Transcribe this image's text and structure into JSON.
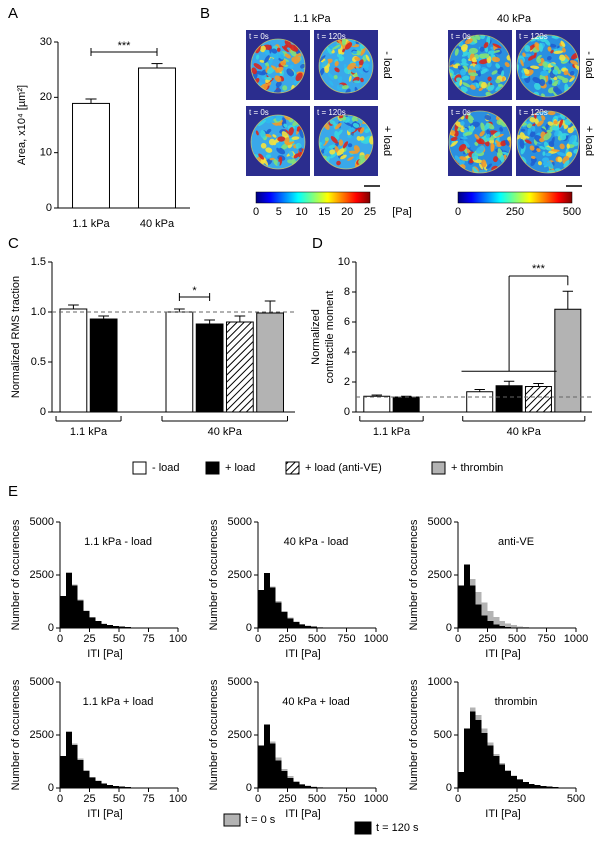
{
  "panel_labels": [
    "A",
    "B",
    "C",
    "D",
    "E"
  ],
  "panel_b": {
    "columns": [
      "1.1 kPa",
      "40 kPa"
    ],
    "rows": [
      "- load",
      "+ load"
    ],
    "times": [
      "t = 0s",
      "t = 120s"
    ],
    "colorbars": [
      {
        "ticks": [
          0,
          5,
          10,
          15,
          20,
          25
        ]
      },
      {
        "ticks": [
          0,
          250,
          500
        ]
      }
    ],
    "unit": "[Pa]"
  },
  "chart_data": [
    {
      "type": "bar",
      "ylabel": "Area, x10⁴ [µm²]",
      "categories": [
        "1.1 kPa",
        "40 kPa"
      ],
      "values": [
        18.9,
        25.3
      ],
      "errors": [
        0.8,
        0.8
      ],
      "color": "#ffffff",
      "ylim": [
        0,
        30
      ],
      "yticks": [
        0,
        10,
        20,
        30
      ],
      "significance": "***"
    },
    {
      "type": "bar",
      "ylabel": "Normalized RMS traction",
      "categories": [
        "1.1 kPa",
        "40 kPa"
      ],
      "ylim": [
        0,
        1.5
      ],
      "yticks": [
        0,
        0.5,
        {
          "value": 1,
          "label": "1.0"
        },
        1.5
      ],
      "reference": 1,
      "significance": "*",
      "series": [
        {
          "name": "- load",
          "color": "#ffffff",
          "values": [
            1.03,
            1.0
          ],
          "errors": [
            0.04,
            0.03
          ]
        },
        {
          "name": "+ load",
          "color": "#000000",
          "values": [
            0.93,
            0.88
          ],
          "errors": [
            0.03,
            0.04
          ]
        },
        {
          "name": "+ load (anti-VE)",
          "color": "#ffffff",
          "pattern": "hatch",
          "values": [
            null,
            0.9
          ],
          "errors": [
            null,
            0.06
          ]
        },
        {
          "name": "+ thrombin",
          "color": "#b3b3b3",
          "values": [
            null,
            0.99
          ],
          "errors": [
            null,
            0.12
          ]
        }
      ]
    },
    {
      "type": "bar",
      "ylabel": [
        "Normalized",
        "contractile moment"
      ],
      "categories": [
        "1.1 kPa",
        "40 kPa"
      ],
      "ylim": [
        0,
        10
      ],
      "yticks": [
        0,
        2,
        4,
        6,
        8,
        10
      ],
      "reference": 1,
      "significance": "***",
      "series": [
        {
          "name": "- load",
          "color": "#ffffff",
          "values": [
            1.05,
            1.35
          ],
          "errors": [
            0.08,
            0.15
          ]
        },
        {
          "name": "+ load",
          "color": "#000000",
          "values": [
            1.0,
            1.75
          ],
          "errors": [
            0.05,
            0.3
          ]
        },
        {
          "name": "+ load (anti-VE)",
          "color": "#ffffff",
          "pattern": "hatch",
          "values": [
            null,
            1.7
          ],
          "errors": [
            null,
            0.2
          ]
        },
        {
          "name": "+ thrombin",
          "color": "#b3b3b3",
          "values": [
            null,
            6.85
          ],
          "errors": [
            null,
            1.2
          ]
        }
      ]
    },
    {
      "type": "histogram",
      "title": "1.1 kPa - load",
      "xlabel": "ITI [Pa]",
      "ylabel": "Number of occurences",
      "xlim": [
        0,
        100
      ],
      "xticks": [
        0,
        25,
        50,
        75,
        100
      ],
      "ylim": [
        0,
        5000
      ],
      "yticks": [
        0,
        2500,
        5000
      ],
      "bins": [
        0,
        5,
        10,
        15,
        20,
        25,
        30,
        35,
        40,
        45,
        50,
        55,
        60,
        65,
        70,
        75,
        80,
        85,
        90,
        95,
        100
      ],
      "series": [
        {
          "name": "t = 0 s",
          "color": "#b3b3b3",
          "values": [
            1450,
            2650,
            2050,
            1350,
            830,
            520,
            340,
            210,
            140,
            95,
            62,
            42,
            27,
            17,
            11,
            7,
            4,
            2,
            1,
            1
          ]
        },
        {
          "name": "t = 120 s",
          "color": "#000000",
          "values": [
            1500,
            2600,
            2000,
            1300,
            800,
            500,
            320,
            200,
            130,
            90,
            60,
            40,
            25,
            15,
            10,
            6,
            4,
            2,
            1,
            1
          ]
        }
      ]
    },
    {
      "type": "histogram",
      "title": "40 kPa - load",
      "xlabel": "ITI [Pa]",
      "ylabel": "Number of occurences",
      "xlim": [
        0,
        1000
      ],
      "xticks": [
        0,
        250,
        500,
        750,
        1000
      ],
      "ylim": [
        0,
        5000
      ],
      "yticks": [
        0,
        2500,
        5000
      ],
      "bins": [
        0,
        50,
        100,
        150,
        200,
        250,
        300,
        350,
        400,
        450,
        500,
        550,
        600,
        650,
        700,
        750,
        800,
        850,
        900,
        950,
        1000
      ],
      "series": [
        {
          "name": "t = 0 s",
          "color": "#b3b3b3",
          "values": [
            1750,
            2550,
            1950,
            1280,
            810,
            500,
            310,
            190,
            115,
            70,
            42,
            25,
            15,
            9,
            5,
            3,
            1,
            1,
            0,
            0
          ]
        },
        {
          "name": "t = 120 s",
          "color": "#000000",
          "values": [
            1800,
            2600,
            1900,
            1200,
            750,
            450,
            280,
            170,
            100,
            60,
            35,
            20,
            12,
            7,
            4,
            2,
            1,
            1,
            0,
            0
          ]
        }
      ]
    },
    {
      "type": "histogram",
      "title": "anti-VE",
      "xlabel": "ITI [Pa]",
      "ylabel": "Number of occurences",
      "xlim": [
        0,
        1000
      ],
      "xticks": [
        0,
        250,
        500,
        750,
        1000
      ],
      "ylim": [
        0,
        5000
      ],
      "yticks": [
        0,
        2500,
        5000
      ],
      "bins": [
        0,
        50,
        100,
        150,
        200,
        250,
        300,
        350,
        400,
        450,
        500,
        550,
        600,
        650,
        700,
        750,
        800,
        850,
        900,
        950,
        1000
      ],
      "series": [
        {
          "name": "t = 0 s",
          "color": "#b3b3b3",
          "values": [
            1600,
            2500,
            2300,
            1700,
            1200,
            800,
            520,
            340,
            210,
            130,
            80,
            45,
            25,
            14,
            8,
            4,
            2,
            1,
            0,
            0
          ]
        },
        {
          "name": "t = 120 s",
          "color": "#000000",
          "values": [
            2000,
            3000,
            2000,
            1100,
            600,
            320,
            170,
            90,
            50,
            25,
            12,
            6,
            3,
            2,
            1,
            0,
            0,
            0,
            0,
            0
          ]
        }
      ]
    },
    {
      "type": "histogram",
      "title": "1.1 kPa + load",
      "xlabel": "ITI [Pa]",
      "ylabel": "Number of occurences",
      "xlim": [
        0,
        100
      ],
      "xticks": [
        0,
        25,
        50,
        75,
        100
      ],
      "ylim": [
        0,
        5000
      ],
      "yticks": [
        0,
        2500,
        5000
      ],
      "bins": [
        0,
        5,
        10,
        15,
        20,
        25,
        30,
        35,
        40,
        45,
        50,
        55,
        60,
        65,
        70,
        75,
        80,
        85,
        90,
        95,
        100
      ],
      "series": [
        {
          "name": "t = 0 s",
          "color": "#b3b3b3",
          "values": [
            1480,
            2700,
            2100,
            1380,
            850,
            530,
            345,
            215,
            142,
            96,
            63,
            43,
            28,
            17,
            11,
            7,
            4,
            2,
            1,
            1
          ]
        },
        {
          "name": "t = 120 s",
          "color": "#000000",
          "values": [
            1520,
            2650,
            2020,
            1310,
            805,
            505,
            325,
            202,
            132,
            91,
            61,
            40,
            25,
            15,
            10,
            6,
            4,
            2,
            1,
            1
          ]
        }
      ]
    },
    {
      "type": "histogram",
      "title": "40 kPa + load",
      "xlabel": "ITI [Pa]",
      "ylabel": "Number of occurences",
      "xlim": [
        0,
        1000
      ],
      "xticks": [
        0,
        250,
        500,
        750,
        1000
      ],
      "ylim": [
        0,
        5000
      ],
      "yticks": [
        0,
        2500,
        5000
      ],
      "bins": [
        0,
        50,
        100,
        150,
        200,
        250,
        300,
        350,
        400,
        450,
        500,
        550,
        600,
        650,
        700,
        750,
        800,
        850,
        900,
        950,
        1000
      ],
      "series": [
        {
          "name": "t = 0 s",
          "color": "#b3b3b3",
          "values": [
            1900,
            2900,
            2200,
            1450,
            900,
            560,
            340,
            200,
            120,
            70,
            40,
            22,
            12,
            7,
            4,
            2,
            1,
            0,
            0,
            0
          ]
        },
        {
          "name": "t = 120 s",
          "color": "#000000",
          "values": [
            2000,
            3000,
            2100,
            1300,
            800,
            480,
            290,
            170,
            100,
            55,
            30,
            16,
            9,
            5,
            3,
            1,
            1,
            0,
            0,
            0
          ]
        }
      ]
    },
    {
      "type": "histogram",
      "title": "thrombin",
      "xlabel": "ITI [Pa]",
      "ylabel": "Number of occurences",
      "xlim": [
        0,
        500
      ],
      "xticks": [
        0,
        250,
        500
      ],
      "ylim": [
        0,
        1000
      ],
      "yticks": [
        0,
        500,
        1000
      ],
      "bins": [
        0,
        25,
        50,
        75,
        100,
        125,
        150,
        175,
        200,
        225,
        250,
        275,
        300,
        325,
        350,
        375,
        400,
        425,
        450,
        475,
        500
      ],
      "series": [
        {
          "name": "t = 0 s",
          "color": "#b3b3b3",
          "values": [
            140,
            540,
            760,
            690,
            560,
            430,
            320,
            235,
            170,
            120,
            84,
            58,
            40,
            27,
            18,
            12,
            8,
            5,
            3,
            2
          ]
        },
        {
          "name": "t = 120 s",
          "color": "#000000",
          "values": [
            150,
            560,
            720,
            640,
            520,
            400,
            300,
            220,
            160,
            115,
            80,
            55,
            38,
            26,
            18,
            12,
            8,
            5,
            3,
            2
          ]
        }
      ]
    }
  ]
}
